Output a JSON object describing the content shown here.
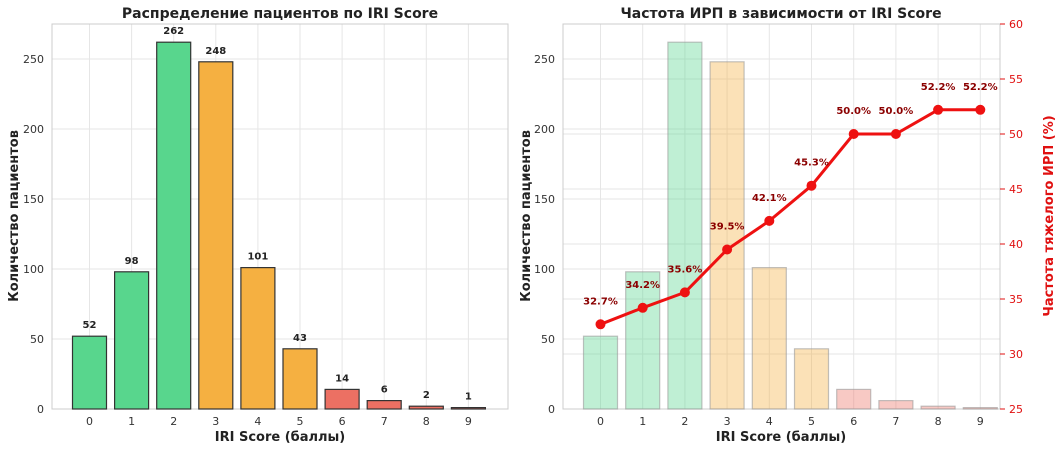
{
  "chart_data": [
    {
      "type": "bar",
      "title": "Распределение пациентов по IRI Score",
      "xlabel": "IRI Score (баллы)",
      "ylabel": "Количество пациентов",
      "categories": [
        "0",
        "1",
        "2",
        "3",
        "4",
        "5",
        "6",
        "7",
        "8",
        "9"
      ],
      "values": [
        52,
        98,
        262,
        248,
        101,
        43,
        14,
        6,
        2,
        1
      ],
      "bar_colors": [
        "#58d68d",
        "#58d68d",
        "#58d68d",
        "#f5b041",
        "#f5b041",
        "#f5b041",
        "#ec7063",
        "#ec7063",
        "#ec7063",
        "#ec7063"
      ],
      "ylim": [
        0,
        275
      ],
      "yticks": [
        0,
        50,
        100,
        150,
        200,
        250
      ],
      "grid": true
    },
    {
      "type": "bar+line",
      "title": "Частота ИРП в зависимости от IRI Score",
      "xlabel": "IRI Score (баллы)",
      "ylabel": "Количество пациентов",
      "y2label": "Частота тяжелого ИРП (%)",
      "categories": [
        "0",
        "1",
        "2",
        "3",
        "4",
        "5",
        "6",
        "7",
        "8",
        "9"
      ],
      "values": [
        52,
        98,
        262,
        248,
        101,
        43,
        14,
        6,
        2,
        1
      ],
      "bar_colors": [
        "#58d68d",
        "#58d68d",
        "#58d68d",
        "#f5b041",
        "#f5b041",
        "#f5b041",
        "#ec7063",
        "#ec7063",
        "#ec7063",
        "#ec7063"
      ],
      "line_values": [
        32.7,
        34.2,
        35.6,
        39.5,
        42.1,
        45.3,
        50.0,
        50.0,
        52.2,
        52.2
      ],
      "line_labels": [
        "32.7%",
        "34.2%",
        "35.6%",
        "39.5%",
        "42.1%",
        "45.3%",
        "50.0%",
        "50.0%",
        "52.2%",
        "52.2%"
      ],
      "line_color": "#ee1111",
      "ylim": [
        0,
        275
      ],
      "y2lim": [
        25,
        60
      ],
      "yticks": [
        0,
        50,
        100,
        150,
        200,
        250
      ],
      "y2ticks": [
        25,
        30,
        35,
        40,
        45,
        50,
        55,
        60
      ],
      "grid": true
    }
  ]
}
